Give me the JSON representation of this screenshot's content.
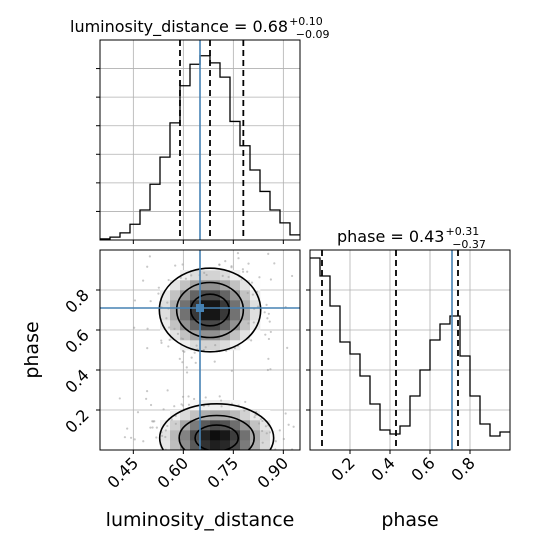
{
  "chart_data": [
    {
      "type": "histogram",
      "panel": "luminosity_distance marginal",
      "title_main": "luminosity_distance = 0.68",
      "title_sup": "+0.10",
      "title_sub": "−0.09",
      "xlim": [
        0.35,
        0.95
      ],
      "bin_edges": [
        0.35,
        0.38,
        0.41,
        0.44,
        0.47,
        0.5,
        0.53,
        0.56,
        0.59,
        0.62,
        0.65,
        0.68,
        0.71,
        0.74,
        0.77,
        0.8,
        0.83,
        0.86,
        0.89,
        0.92,
        0.95
      ],
      "values": [
        0.4,
        1.0,
        2.5,
        5.5,
        10.5,
        19.5,
        29.0,
        41.0,
        54.0,
        61.5,
        64.5,
        62.0,
        57.0,
        41.5,
        33.0,
        24.5,
        17.0,
        10.5,
        6.0,
        1.8
      ],
      "ylim": [
        0,
        70
      ],
      "quantile_lines": [
        0.59,
        0.68,
        0.78
      ],
      "truth": 0.65
    },
    {
      "type": "histogram",
      "panel": "phase marginal",
      "title_main": "phase = 0.43",
      "title_sup": "+0.31",
      "title_sub": "−0.37",
      "xlim": [
        0.0,
        1.0
      ],
      "bin_edges": [
        0.0,
        0.05,
        0.1,
        0.15,
        0.2,
        0.25,
        0.3,
        0.35,
        0.4,
        0.45,
        0.5,
        0.55,
        0.6,
        0.65,
        0.7,
        0.75,
        0.8,
        0.85,
        0.9,
        0.95,
        1.0
      ],
      "values": [
        96,
        87,
        72,
        54,
        48,
        37,
        23,
        10,
        8,
        12,
        27,
        40,
        55,
        63,
        67,
        47,
        27,
        13,
        7,
        9
      ],
      "ylim": [
        0,
        100
      ],
      "quantile_lines": [
        0.06,
        0.43,
        0.74
      ],
      "truth": 0.71,
      "xticks": [
        0.2,
        0.4,
        0.6,
        0.8
      ],
      "xticklabels": [
        "0.2",
        "0.4",
        "0.6",
        "0.8"
      ],
      "xlabel": "phase"
    },
    {
      "type": "heatmap",
      "panel": "joint luminosity_distance vs phase",
      "xlim": [
        0.35,
        0.95
      ],
      "ylim": [
        0.0,
        1.0
      ],
      "xticks": [
        0.45,
        0.6,
        0.75,
        0.9
      ],
      "xticklabels": [
        "0.45",
        "0.60",
        "0.75",
        "0.90"
      ],
      "yticks": [
        0.2,
        0.4,
        0.6,
        0.8
      ],
      "yticklabels": [
        "0.2",
        "0.4",
        "0.6",
        "0.8"
      ],
      "xlabel": "luminosity_distance",
      "ylabel": "phase",
      "modes": [
        {
          "x": 0.68,
          "y": 0.7,
          "sx": 0.08,
          "sy": 0.11
        },
        {
          "x": 0.7,
          "y": 0.06,
          "sx": 0.09,
          "sy": 0.09
        }
      ],
      "truth": {
        "x": 0.65,
        "y": 0.71
      }
    }
  ]
}
